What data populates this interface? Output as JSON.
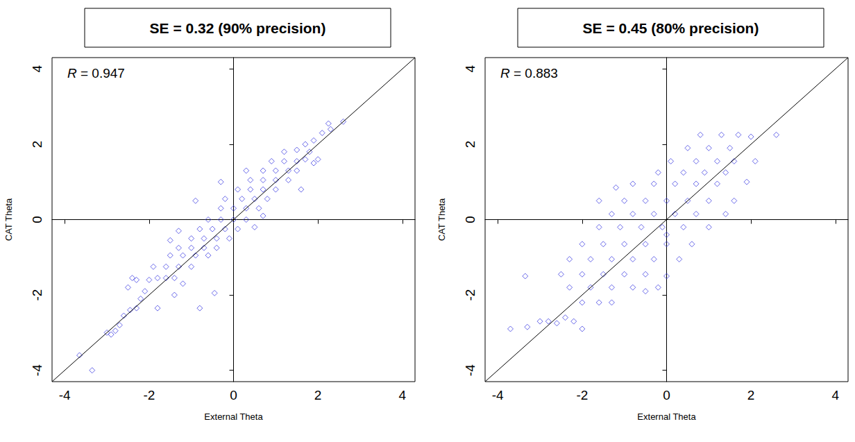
{
  "chart_data": [
    {
      "type": "scatter",
      "title": "SE = 0.32 (90% precision)",
      "annotation": "R = 0.947",
      "x_label": "External Theta",
      "y_label": "CAT Theta",
      "xlim": [
        -4.3,
        4.3
      ],
      "ylim": [
        -4.3,
        4.3
      ],
      "xticks": [
        -4,
        -2,
        0,
        2,
        4
      ],
      "yticks": [
        -4,
        -2,
        0,
        2,
        4
      ],
      "grid": false,
      "series": [
        {
          "type": "scatter",
          "color": "#3535e0",
          "marker": "diamond",
          "x": [
            -3.65,
            -3.35,
            -3.0,
            -2.9,
            -2.8,
            -2.7,
            -2.6,
            -2.45,
            -2.3,
            -2.2,
            -2.1,
            -2.4,
            -2.0,
            -1.8,
            -1.6,
            -1.4,
            -1.9,
            -1.6,
            -1.3,
            -1.0,
            -1.8,
            -1.4,
            -1.2,
            -1.5,
            -1.2,
            -0.9,
            -0.6,
            -1.3,
            -1.0,
            -0.7,
            -0.4,
            -1.0,
            -0.7,
            -0.4,
            -0.1,
            -0.8,
            -0.5,
            -0.2,
            0.1,
            -0.6,
            -0.3,
            0.0,
            0.3,
            -0.3,
            0.0,
            0.3,
            0.6,
            -0.2,
            0.2,
            0.5,
            0.8,
            0.1,
            0.4,
            0.7,
            1.0,
            0.4,
            0.7,
            1.0,
            1.3,
            0.7,
            1.0,
            1.3,
            1.5,
            0.9,
            1.2,
            1.5,
            1.7,
            1.2,
            1.5,
            1.8,
            1.7,
            1.9,
            2.1,
            2.3,
            2.6,
            2.25,
            -0.8,
            -2.5,
            -1.3,
            0.5,
            -0.9,
            -0.45,
            -2.3,
            -1.5,
            0.7,
            -0.3,
            0.3,
            1.6,
            1.9,
            2.0
          ],
          "values": [
            -3.6,
            -4.0,
            -3.0,
            -3.05,
            -2.95,
            -2.8,
            -2.55,
            -2.4,
            -2.35,
            -2.1,
            -1.9,
            -1.55,
            -1.6,
            -1.55,
            -1.55,
            -1.55,
            -1.25,
            -1.25,
            -1.25,
            -1.25,
            -2.35,
            -2.0,
            -1.7,
            -0.95,
            -0.95,
            -0.95,
            -0.95,
            -0.75,
            -0.75,
            -0.75,
            -0.75,
            -0.5,
            -0.5,
            -0.5,
            -0.5,
            -0.25,
            -0.25,
            -0.25,
            -0.25,
            0.0,
            0.0,
            0.0,
            0.0,
            0.3,
            0.3,
            0.3,
            0.3,
            0.55,
            0.55,
            0.55,
            0.55,
            0.8,
            0.8,
            0.8,
            0.8,
            1.05,
            1.05,
            1.05,
            1.05,
            1.3,
            1.3,
            1.3,
            1.3,
            1.55,
            1.55,
            1.55,
            1.6,
            1.8,
            1.85,
            1.8,
            2.0,
            2.1,
            2.3,
            2.4,
            2.6,
            2.55,
            -2.35,
            -1.8,
            -0.3,
            -0.2,
            0.5,
            -1.95,
            -1.6,
            -0.55,
            0.1,
            1.0,
            1.3,
            0.8,
            1.5,
            1.6
          ]
        },
        {
          "type": "line",
          "color": "#000000",
          "line_style": "solid",
          "x": [
            -4.3,
            4.3
          ],
          "values": [
            -4.3,
            4.3
          ]
        }
      ]
    },
    {
      "type": "scatter",
      "title": "SE = 0.45 (80% precision)",
      "annotation": "R = 0.883",
      "x_label": "External Theta",
      "y_label": "CAT Theta",
      "xlim": [
        -4.3,
        4.3
      ],
      "ylim": [
        -4.3,
        4.3
      ],
      "xticks": [
        -4,
        -2,
        0,
        2,
        4
      ],
      "yticks": [
        -4,
        -2,
        0,
        2,
        4
      ],
      "grid": false,
      "series": [
        {
          "type": "scatter",
          "color": "#3535e0",
          "marker": "diamond",
          "x": [
            -3.7,
            -3.3,
            -3.35,
            -2.8,
            -2.6,
            -2.4,
            -2.2,
            -2.0,
            -2.5,
            -2.0,
            -1.5,
            -1.0,
            -0.5,
            0.0,
            -2.3,
            -1.8,
            -1.3,
            -0.8,
            -0.2,
            -2.0,
            -1.6,
            -1.3,
            -2.3,
            -1.8,
            -1.3,
            -0.8,
            -0.3,
            0.3,
            -2.0,
            -1.5,
            -1.0,
            -0.5,
            0.0,
            0.6,
            -1.6,
            -1.1,
            -0.6,
            -0.1,
            0.4,
            1.0,
            -1.3,
            -0.8,
            -0.3,
            0.2,
            0.7,
            1.4,
            -1.6,
            -1.0,
            -0.5,
            0.0,
            0.5,
            1.0,
            1.6,
            -0.8,
            -0.3,
            0.2,
            0.7,
            1.2,
            1.9,
            -1.2,
            -0.2,
            0.4,
            0.9,
            1.4,
            0.1,
            0.7,
            1.2,
            1.6,
            0.5,
            1.0,
            1.5,
            0.8,
            1.3,
            1.7,
            2.6,
            2.1,
            2.0,
            -0.5,
            -3.0,
            0.0
          ],
          "values": [
            -2.9,
            -2.85,
            -1.5,
            -2.7,
            -2.75,
            -2.6,
            -2.7,
            -2.9,
            -1.45,
            -1.45,
            -1.45,
            -1.45,
            -1.45,
            -1.5,
            -1.8,
            -1.8,
            -1.8,
            -1.8,
            -1.8,
            -2.2,
            -2.2,
            -2.2,
            -1.05,
            -1.05,
            -1.05,
            -1.05,
            -1.05,
            -1.05,
            -0.65,
            -0.65,
            -0.65,
            -0.65,
            -0.65,
            -0.65,
            -0.2,
            -0.2,
            -0.2,
            -0.2,
            -0.2,
            -0.2,
            0.15,
            0.15,
            0.15,
            0.15,
            0.15,
            0.15,
            0.5,
            0.5,
            0.5,
            0.5,
            0.5,
            0.5,
            0.5,
            0.95,
            0.95,
            0.95,
            0.95,
            0.95,
            1.0,
            0.85,
            1.25,
            1.25,
            1.25,
            1.25,
            1.55,
            1.55,
            1.55,
            1.55,
            1.9,
            1.9,
            1.9,
            2.25,
            2.25,
            2.25,
            2.25,
            1.55,
            2.2,
            -1.9,
            -2.7,
            -0.4
          ]
        },
        {
          "type": "line",
          "color": "#000000",
          "line_style": "solid",
          "x": [
            -4.3,
            4.3
          ],
          "values": [
            -4.3,
            4.3
          ]
        }
      ]
    }
  ]
}
